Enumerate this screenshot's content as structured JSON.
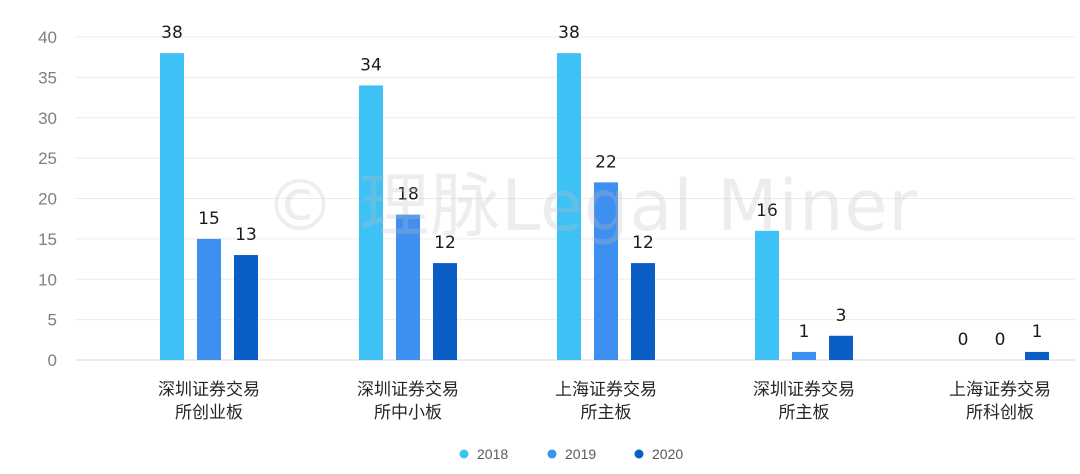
{
  "watermark": "© 理脉Legal Miner",
  "chart_data": {
    "type": "bar",
    "categories": [
      [
        "深圳证券交易",
        "所创业板"
      ],
      [
        "深圳证券交易",
        "所中小板"
      ],
      [
        "上海证券交易",
        "所主板"
      ],
      [
        "深圳证券交易",
        "所主板"
      ],
      [
        "上海证券交易",
        "所科创板"
      ]
    ],
    "series": [
      {
        "name": "2018",
        "color": "#3ec1f5",
        "values": [
          38,
          34,
          38,
          16,
          0
        ]
      },
      {
        "name": "2019",
        "color": "#3d8ff0",
        "values": [
          15,
          18,
          22,
          1,
          0
        ]
      },
      {
        "name": "2020",
        "color": "#0a5ec6",
        "values": [
          13,
          12,
          12,
          3,
          1
        ]
      }
    ],
    "ylim": [
      0,
      40
    ],
    "yticks": [
      0,
      5,
      10,
      15,
      20,
      25,
      30,
      35,
      40
    ],
    "grid": true,
    "legend_position": "bottom-center",
    "title": "",
    "xlabel": "",
    "ylabel": ""
  }
}
